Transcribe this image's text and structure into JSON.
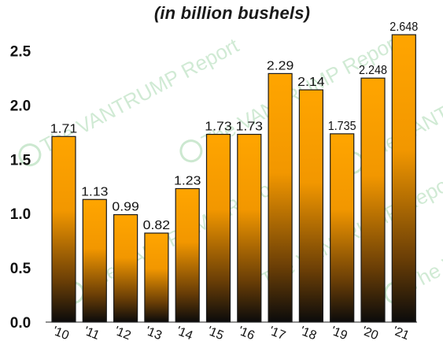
{
  "chart_data": {
    "type": "bar",
    "subtitle": "(in billion bushels)",
    "categories": [
      "'10",
      "'11",
      "'12",
      "'13",
      "'14",
      "'15",
      "'16",
      "'17",
      "'18",
      "'19",
      "'20",
      "'21"
    ],
    "values": [
      1.71,
      1.13,
      0.99,
      0.82,
      1.23,
      1.73,
      1.73,
      2.29,
      2.14,
      1.735,
      2.248,
      2.648
    ],
    "value_labels": [
      "1.71",
      "1.13",
      "0.99",
      "0.82",
      "1.23",
      "1.73",
      "1.73",
      "2.29",
      "2.14",
      "1.735",
      "2.248",
      "2.648"
    ],
    "yticks": [
      "0.0",
      "0.5",
      "1.0",
      "1.5",
      "2.0",
      "2.5"
    ],
    "ylim": [
      0,
      2.75
    ],
    "grid": false,
    "bar_color_top": "#ffa500",
    "bar_color_bottom": "#0b0b0b"
  },
  "watermark": {
    "brand": "VanTrump",
    "text": "The VANTRUMP Report"
  }
}
